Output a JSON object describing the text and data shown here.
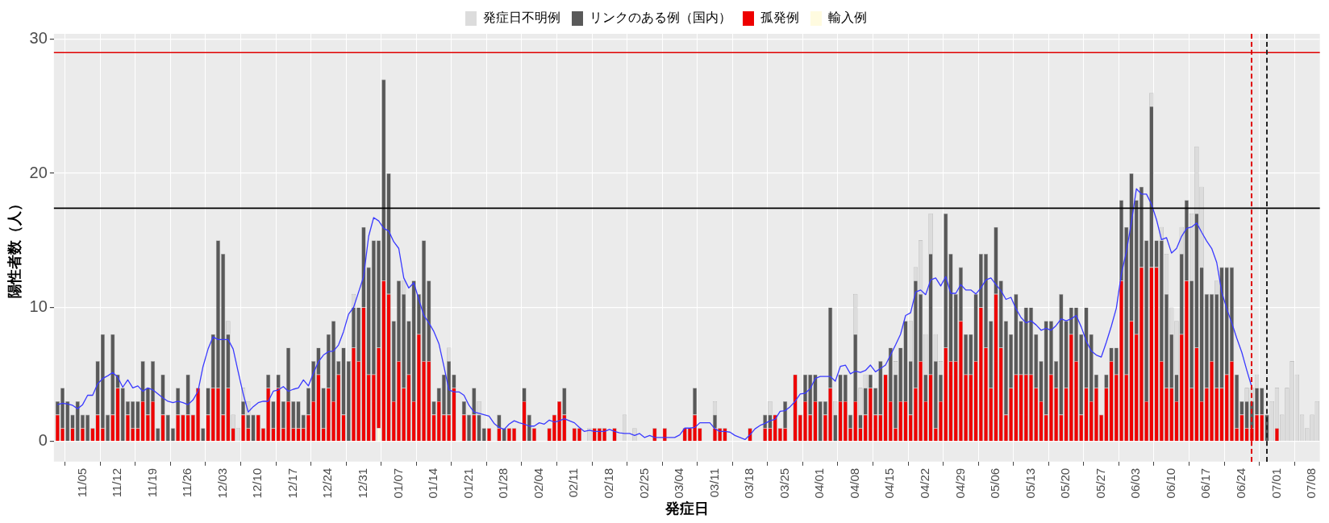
{
  "chart_data": {
    "type": "bar",
    "stacked": true,
    "xlabel": "発症日",
    "ylabel": "陽性者数（人）",
    "legend": "top",
    "grid": true,
    "ylim": [
      -1.5,
      30.4
    ],
    "yticks": [
      0,
      10,
      20,
      30
    ],
    "categories": [
      null,
      null,
      null,
      null,
      null,
      "11/05",
      null,
      null,
      null,
      null,
      null,
      null,
      "11/12",
      null,
      null,
      null,
      null,
      null,
      null,
      "11/19",
      null,
      null,
      null,
      null,
      null,
      null,
      "11/26",
      null,
      null,
      null,
      null,
      null,
      null,
      "12/03",
      null,
      null,
      null,
      null,
      null,
      null,
      "12/10",
      null,
      null,
      null,
      null,
      null,
      null,
      "12/17",
      null,
      null,
      null,
      null,
      null,
      null,
      "12/24",
      null,
      null,
      null,
      null,
      null,
      null,
      "12/31",
      null,
      null,
      null,
      null,
      null,
      null,
      "01/07",
      null,
      null,
      null,
      null,
      null,
      null,
      "01/14",
      null,
      null,
      null,
      null,
      null,
      null,
      "01/21",
      null,
      null,
      null,
      null,
      null,
      null,
      "01/28",
      null,
      null,
      null,
      null,
      null,
      null,
      "02/04",
      null,
      null,
      null,
      null,
      null,
      null,
      "02/11",
      null,
      null,
      null,
      null,
      null,
      null,
      "02/18",
      null,
      null,
      null,
      null,
      null,
      null,
      "02/25",
      null,
      null,
      null,
      null,
      null,
      null,
      "03/04",
      null,
      null,
      null,
      null,
      null,
      null,
      "03/11",
      null,
      null,
      null,
      null,
      null,
      null,
      "03/18",
      null,
      null,
      null,
      null,
      null,
      null,
      "03/25",
      null,
      null,
      null,
      null,
      null,
      null,
      "04/01",
      null,
      null,
      null,
      null,
      null,
      null,
      "04/08",
      null,
      null,
      null,
      null,
      null,
      null,
      "04/15",
      null,
      null,
      null,
      null,
      null,
      null,
      "04/22",
      null,
      null,
      null,
      null,
      null,
      null,
      "04/29",
      null,
      null,
      null,
      null,
      null,
      null,
      "05/06",
      null,
      null,
      null,
      null,
      null,
      null,
      "05/13",
      null,
      null,
      null,
      null,
      null,
      null,
      "05/20",
      null,
      null,
      null,
      null,
      null,
      null,
      "05/27",
      null,
      null,
      null,
      null,
      null,
      null,
      "06/03",
      null,
      null,
      null,
      null,
      null,
      null,
      "06/10",
      null,
      null,
      null,
      null,
      null,
      null,
      "06/17",
      null,
      null,
      null,
      null,
      null,
      null,
      "06/24",
      null,
      null,
      null,
      null,
      null,
      null,
      "07/01",
      null,
      null,
      null,
      null,
      null,
      null,
      "07/08",
      null
    ],
    "ref_lines": [
      {
        "axis": "y",
        "value": 29,
        "color": "#e00000",
        "line_style": "solid"
      },
      {
        "axis": "y",
        "value": 17.4,
        "color": "#000000",
        "line_style": "solid"
      }
    ],
    "series": [
      {
        "name": "輸入例",
        "color": "#fffbe0",
        "values": [
          0,
          0,
          0,
          0,
          0,
          0,
          0,
          0,
          0,
          0,
          0,
          0,
          0,
          0,
          0,
          0,
          0,
          0,
          0,
          0,
          0,
          0,
          0,
          0,
          0,
          0,
          0,
          0,
          0,
          0,
          0,
          0,
          0,
          0,
          0,
          0,
          0,
          0,
          0,
          0,
          0,
          0,
          0,
          0,
          0,
          0,
          0,
          0,
          0,
          0,
          0,
          0,
          0,
          0,
          0,
          0,
          0,
          0,
          0,
          0,
          0,
          0,
          0,
          0,
          1,
          0,
          0,
          0,
          0,
          0,
          0,
          0,
          0,
          0,
          0,
          0,
          0,
          0,
          0,
          0,
          0,
          0,
          0,
          0,
          0,
          0,
          0,
          0,
          0,
          0,
          0,
          0,
          0,
          0,
          0,
          0,
          0,
          0,
          0,
          0,
          0,
          0,
          0,
          0,
          0,
          0,
          0,
          0,
          0,
          0,
          0,
          0,
          0,
          0,
          0,
          0,
          0,
          0,
          0,
          0,
          0,
          0,
          0,
          0,
          0,
          0,
          0,
          0,
          0,
          0,
          0,
          0,
          0,
          0,
          0,
          0,
          0,
          0,
          0,
          0,
          0,
          0,
          0,
          0,
          0,
          0,
          0,
          0,
          0,
          0,
          0,
          0,
          0,
          0,
          0,
          0,
          0,
          0,
          0,
          0,
          0,
          0,
          0,
          0,
          0,
          0,
          0,
          0,
          0,
          0,
          0,
          0,
          0,
          0,
          0,
          0,
          0,
          0,
          0,
          0,
          0,
          0,
          0,
          0,
          0,
          0,
          0,
          0,
          0,
          0,
          0,
          0,
          0,
          0,
          0,
          0,
          0,
          0,
          0,
          0,
          0,
          0,
          0,
          0,
          0,
          0,
          0,
          0,
          0,
          0,
          0,
          0,
          0,
          0,
          0,
          0,
          0,
          0,
          0,
          0,
          0,
          0,
          0,
          0,
          0,
          0,
          0,
          0,
          0,
          0,
          0,
          0,
          0,
          0,
          0,
          0,
          0,
          0,
          0,
          0,
          0,
          0,
          0,
          0,
          0,
          0,
          0,
          0,
          0,
          0,
          0,
          0
        ]
      },
      {
        "name": "孤発例",
        "color": "#ee0000",
        "values": [
          2,
          1,
          0,
          1,
          0,
          1,
          0,
          1,
          2,
          1,
          0,
          2,
          4,
          0,
          2,
          1,
          1,
          3,
          2,
          3,
          0,
          2,
          0,
          0,
          2,
          2,
          2,
          2,
          4,
          0,
          2,
          4,
          4,
          2,
          4,
          1,
          0,
          2,
          1,
          0,
          2,
          1,
          4,
          1,
          4,
          1,
          3,
          1,
          1,
          1,
          2,
          3,
          5,
          1,
          4,
          3,
          5,
          2,
          0,
          7,
          6,
          10,
          5,
          5,
          6,
          12,
          11,
          3,
          6,
          4,
          5,
          3,
          8,
          6,
          6,
          2,
          3,
          2,
          2,
          4,
          0,
          2,
          0,
          2,
          0,
          0,
          1,
          0,
          1,
          0,
          1,
          1,
          0,
          3,
          0,
          1,
          0,
          0,
          1,
          2,
          3,
          2,
          0,
          1,
          1,
          0,
          0,
          1,
          1,
          1,
          0,
          1,
          0,
          0,
          0,
          0,
          0,
          0,
          0,
          1,
          0,
          1,
          0,
          0,
          0,
          1,
          1,
          2,
          1,
          0,
          0,
          1,
          1,
          1,
          0,
          0,
          0,
          0,
          1,
          0,
          0,
          1,
          1,
          2,
          1,
          1,
          0,
          5,
          2,
          3,
          2,
          3,
          0,
          2,
          4,
          0,
          3,
          3,
          1,
          3,
          1,
          2,
          4,
          2,
          2,
          5,
          3,
          1,
          3,
          3,
          2,
          4,
          6,
          3,
          5,
          1,
          3,
          7,
          6,
          6,
          9,
          5,
          5,
          6,
          10,
          7,
          4,
          11,
          7,
          2,
          4,
          5,
          5,
          5,
          5,
          4,
          3,
          2,
          5,
          4,
          2,
          4,
          8,
          6,
          2,
          4,
          3,
          4,
          2,
          4,
          6,
          5,
          12,
          5,
          9,
          8,
          13,
          3,
          13,
          13,
          6,
          4,
          4,
          3,
          8,
          12,
          4,
          7,
          3,
          4,
          6,
          4,
          4,
          5,
          6,
          1,
          2,
          1,
          1,
          2,
          2,
          0,
          0,
          1,
          0,
          0,
          0,
          0,
          0,
          0,
          0,
          0
        ]
      },
      {
        "name": "リンクのある例（国内）",
        "color": "#595959",
        "values": [
          1,
          3,
          3,
          1,
          3,
          1,
          2,
          0,
          4,
          7,
          2,
          6,
          1,
          4,
          1,
          2,
          2,
          3,
          2,
          3,
          1,
          3,
          2,
          1,
          2,
          0,
          3,
          0,
          0,
          1,
          2,
          4,
          11,
          12,
          4,
          0,
          0,
          1,
          1,
          2,
          0,
          0,
          1,
          2,
          1,
          2,
          4,
          2,
          2,
          1,
          2,
          3,
          2,
          3,
          4,
          6,
          1,
          5,
          6,
          3,
          4,
          6,
          8,
          10,
          8,
          15,
          9,
          6,
          6,
          7,
          4,
          9,
          3,
          9,
          6,
          1,
          1,
          3,
          4,
          1,
          0,
          1,
          2,
          2,
          2,
          1,
          0,
          0,
          1,
          1,
          0,
          0,
          0,
          1,
          2,
          0,
          0,
          0,
          0,
          0,
          0,
          2,
          0,
          0,
          0,
          0,
          0,
          0,
          0,
          0,
          0,
          0,
          0,
          0,
          0,
          0,
          0,
          0,
          0,
          0,
          0,
          0,
          0,
          0,
          0,
          0,
          0,
          2,
          0,
          0,
          0,
          1,
          0,
          0,
          0,
          0,
          0,
          0,
          0,
          0,
          0,
          1,
          1,
          0,
          0,
          2,
          0,
          0,
          0,
          2,
          3,
          2,
          3,
          1,
          6,
          2,
          2,
          2,
          1,
          5,
          1,
          2,
          1,
          2,
          4,
          0,
          4,
          4,
          4,
          6,
          4,
          8,
          5,
          2,
          9,
          5,
          2,
          10,
          8,
          5,
          4,
          3,
          3,
          5,
          4,
          7,
          5,
          5,
          5,
          7,
          4,
          6,
          4,
          5,
          5,
          4,
          3,
          7,
          4,
          2,
          9,
          5,
          2,
          4,
          6,
          6,
          5,
          1,
          0,
          1,
          1,
          2,
          6,
          11,
          11,
          10,
          6,
          12,
          12,
          2,
          9,
          7,
          4,
          2,
          6,
          6,
          8,
          10,
          10,
          7,
          5,
          7,
          9,
          8,
          7,
          4,
          1,
          2,
          2,
          2,
          2,
          2,
          0,
          0,
          0,
          0,
          0,
          0,
          0,
          0,
          0,
          0
        ]
      },
      {
        "name": "発症日不明例",
        "color": "#dcdcdc",
        "values": [
          0,
          0,
          0,
          0,
          0,
          0,
          0,
          0,
          0,
          0,
          0,
          0,
          0,
          0,
          0,
          0,
          0,
          0,
          0,
          0,
          0,
          0,
          0,
          0,
          0,
          0,
          0,
          0,
          0,
          0,
          0,
          0,
          0,
          0,
          1,
          1,
          1,
          1,
          1,
          0,
          0,
          0,
          0,
          0,
          0,
          0,
          0,
          0,
          0,
          0,
          0,
          0,
          0,
          0,
          0,
          0,
          0,
          0,
          0,
          1,
          0,
          0,
          0,
          0,
          0,
          0,
          0,
          0,
          0,
          1,
          0,
          0,
          0,
          0,
          0,
          0,
          0,
          0,
          1,
          0,
          0,
          0,
          0,
          0,
          1,
          0,
          0,
          0,
          0,
          0,
          0,
          0,
          0,
          0,
          0,
          0,
          0,
          0,
          0,
          0,
          0,
          0,
          0,
          0,
          0,
          0,
          1,
          0,
          0,
          0,
          0,
          0,
          0,
          2,
          0,
          1,
          0,
          0,
          0,
          0,
          0,
          0,
          0,
          0,
          0,
          0,
          0,
          0,
          0,
          0,
          0,
          1,
          0,
          0,
          0,
          0,
          0,
          0,
          0,
          0,
          0,
          0,
          1,
          0,
          0,
          0,
          0,
          0,
          0,
          0,
          0,
          0,
          0,
          0,
          0,
          1,
          0,
          0,
          0,
          3,
          2,
          1,
          0,
          0,
          0,
          0,
          0,
          1,
          0,
          0,
          3,
          1,
          4,
          3,
          3,
          2,
          1,
          0,
          0,
          0,
          0,
          0,
          0,
          0,
          0,
          0,
          0,
          0,
          0,
          0,
          0,
          0,
          0,
          0,
          0,
          0,
          0,
          0,
          0,
          0,
          0,
          0,
          0,
          0,
          0,
          0,
          0,
          0,
          0,
          0,
          0,
          0,
          0,
          0,
          0,
          0,
          0,
          0,
          1,
          0,
          1,
          3,
          2,
          4,
          2,
          0,
          5,
          5,
          6,
          0,
          0,
          1,
          0,
          0,
          0,
          0,
          0,
          1,
          1,
          1,
          0,
          0,
          3,
          3,
          2,
          4,
          6,
          5,
          2,
          1,
          2,
          3
        ]
      },
      {
        "type": "line",
        "color": "#3a3aff",
        "values": [
          2.75,
          2.85,
          2.8,
          2.7,
          2.45,
          2.75,
          3.45,
          3.45,
          4.3,
          4.7,
          4.9,
          5.15,
          4.8,
          4.05,
          4.6,
          4.0,
          4.15,
          3.75,
          4.0,
          3.85,
          3.55,
          3.25,
          3.0,
          2.9,
          3.0,
          2.9,
          2.75,
          3.1,
          3.75,
          5.6,
          6.9,
          7.8,
          7.6,
          7.6,
          7.6,
          6.9,
          5.2,
          3.55,
          2.2,
          2.6,
          2.9,
          3.0,
          3.0,
          3.75,
          3.85,
          4.1,
          3.75,
          3.9,
          4.0,
          4.6,
          4.15,
          5.1,
          5.95,
          6.45,
          6.7,
          6.75,
          7.2,
          8.2,
          9.5,
          10.0,
          11.15,
          12.3,
          15.3,
          16.7,
          16.45,
          15.9,
          15.7,
          14.9,
          14.4,
          12.2,
          11.45,
          11.85,
          10.6,
          9.4,
          8.85,
          8.2,
          7.3,
          5.6,
          3.85,
          3.7,
          3.7,
          3.45,
          2.7,
          2.2,
          2.1,
          2.0,
          1.9,
          1.35,
          1.05,
          0.9,
          1.3,
          1.55,
          1.4,
          1.3,
          1.15,
          1.15,
          1.4,
          1.3,
          1.6,
          1.45,
          1.55,
          1.7,
          1.55,
          1.4,
          1.05,
          0.75,
          0.85,
          0.75,
          0.75,
          0.75,
          0.9,
          0.75,
          0.65,
          0.6,
          0.6,
          0.45,
          0.6,
          0.3,
          0.45,
          0.3,
          0.3,
          0.3,
          0.3,
          0.3,
          0.5,
          1.0,
          1.0,
          1.05,
          1.4,
          1.4,
          1.4,
          0.95,
          0.75,
          0.75,
          0.7,
          0.45,
          0.3,
          0.15,
          0.5,
          0.95,
          1.2,
          1.35,
          1.55,
          1.65,
          2.25,
          2.3,
          2.6,
          3.0,
          3.55,
          3.6,
          3.95,
          4.7,
          4.85,
          4.85,
          4.85,
          4.5,
          5.6,
          5.7,
          5.05,
          5.25,
          5.15,
          5.3,
          5.7,
          5.2,
          5.45,
          5.7,
          6.45,
          7.2,
          8.0,
          9.4,
          9.6,
          11.15,
          11.3,
          10.95,
          12.05,
          12.2,
          11.6,
          12.3,
          11.05,
          11.05,
          11.7,
          11.3,
          11.3,
          11.0,
          11.45,
          12.05,
          12.2,
          11.7,
          11.25,
          10.6,
          10.75,
          9.9,
          9.25,
          8.85,
          9.0,
          8.7,
          8.3,
          8.45,
          8.3,
          8.65,
          9.15,
          9.0,
          9.15,
          9.4,
          8.55,
          7.5,
          6.75,
          6.45,
          6.3,
          7.4,
          8.6,
          9.95,
          12.5,
          14.15,
          16.35,
          18.85,
          18.45,
          18.45,
          17.7,
          16.55,
          15.05,
          15.2,
          14.05,
          14.4,
          15.3,
          15.9,
          16.0,
          16.3,
          15.6,
          14.95,
          14.4,
          13.35,
          11.15,
          9.9,
          8.85,
          7.7,
          6.65,
          5.3,
          4.05,
          null,
          null,
          null,
          null,
          null,
          null,
          null,
          null,
          null,
          null,
          null,
          null,
          null
        ]
      }
    ]
  }
}
